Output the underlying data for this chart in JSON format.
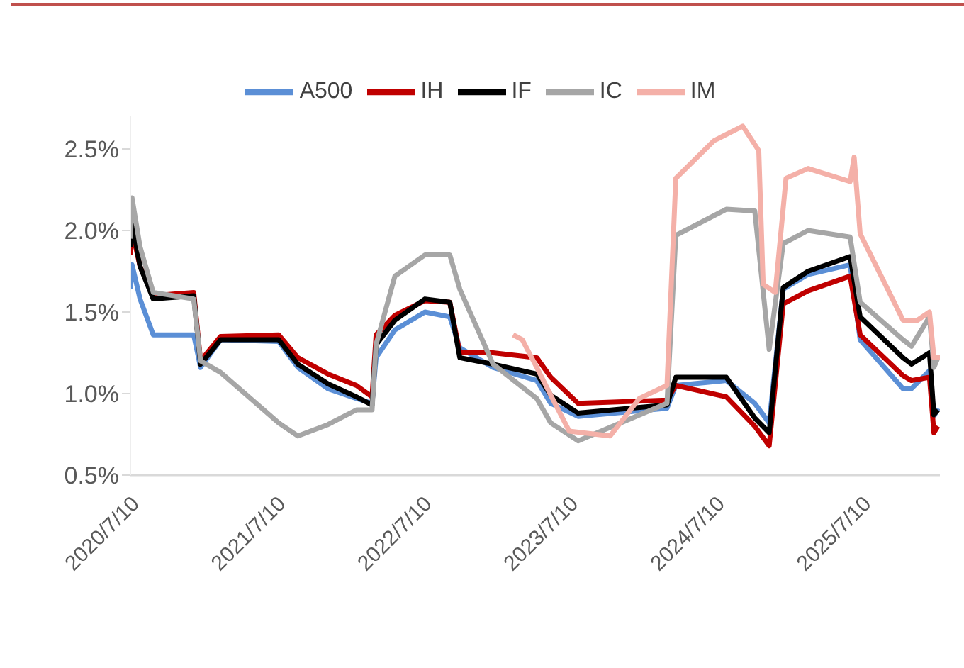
{
  "chart_data": {
    "type": "line",
    "x": [
      "2020-07-10",
      "2020-07-14",
      "2020-08-03",
      "2020-09-05",
      "2020-12-15",
      "2021-01-01",
      "2021-02-20",
      "2021-07-15",
      "2021-09-01",
      "2021-11-15",
      "2022-01-25",
      "2022-03-05",
      "2022-03-15",
      "2022-05-01",
      "2022-07-15",
      "2022-09-15",
      "2022-10-10",
      "2023-01-01",
      "2023-04-20",
      "2023-05-25",
      "2023-08-01",
      "2024-03-10",
      "2024-04-01",
      "2024-08-05",
      "2024-10-15",
      "2024-11-20",
      "2024-12-25",
      "2025-02-25",
      "2025-06-10",
      "2025-07-05",
      "2025-10-20",
      "2025-11-10",
      "2025-12-25",
      "2026-01-05",
      "2026-01-15"
    ],
    "series": [
      {
        "name": "A500",
        "color": "#5b8fd6",
        "values": [
          1.64,
          1.79,
          1.58,
          1.36,
          1.36,
          1.16,
          1.33,
          1.32,
          1.16,
          1.03,
          0.97,
          0.94,
          1.22,
          1.39,
          1.5,
          1.47,
          1.28,
          1.16,
          1.08,
          0.94,
          0.86,
          0.91,
          1.05,
          1.08,
          0.94,
          0.82,
          1.64,
          1.73,
          1.79,
          1.33,
          1.03,
          1.03,
          1.14,
          0.86,
          0.91
        ]
      },
      {
        "name": "IH",
        "color": "#c00000",
        "values": [
          1.85,
          2.0,
          1.78,
          1.6,
          1.62,
          1.2,
          1.35,
          1.36,
          1.22,
          1.12,
          1.05,
          0.98,
          1.36,
          1.48,
          1.57,
          1.56,
          1.25,
          1.25,
          1.22,
          1.1,
          0.94,
          0.96,
          1.05,
          0.98,
          0.8,
          0.68,
          1.55,
          1.63,
          1.72,
          1.36,
          1.11,
          1.08,
          1.1,
          0.76,
          0.8
        ]
      },
      {
        "name": "IF",
        "color": "#000000",
        "values": [
          1.9,
          2.05,
          1.78,
          1.58,
          1.6,
          1.18,
          1.33,
          1.33,
          1.18,
          1.06,
          0.98,
          0.93,
          1.3,
          1.45,
          1.58,
          1.56,
          1.22,
          1.18,
          1.12,
          0.99,
          0.88,
          0.93,
          1.1,
          1.1,
          0.85,
          0.76,
          1.65,
          1.75,
          1.84,
          1.47,
          1.22,
          1.18,
          1.25,
          0.87,
          0.9
        ]
      },
      {
        "name": "IC",
        "color": "#a6a6a6",
        "values": [
          1.95,
          2.2,
          1.9,
          1.62,
          1.58,
          1.2,
          1.13,
          0.82,
          0.74,
          0.81,
          0.9,
          0.9,
          1.3,
          1.72,
          1.85,
          1.85,
          1.64,
          1.18,
          0.97,
          0.82,
          0.71,
          0.94,
          1.97,
          2.13,
          2.12,
          1.27,
          1.92,
          2.0,
          1.96,
          1.56,
          1.33,
          1.29,
          1.47,
          1.16,
          1.22
        ]
      },
      {
        "name": "IM",
        "color": "#f4b0a8",
        "x": [
          "2023-02-20",
          "2023-03-15",
          "2023-04-20",
          "2023-05-25",
          "2023-07-10",
          "2023-10-20",
          "2024-01-01",
          "2024-03-10",
          "2024-04-01",
          "2024-07-05",
          "2024-09-15",
          "2024-10-25",
          "2024-11-05",
          "2024-12-05",
          "2025-01-01",
          "2025-02-25",
          "2025-06-10",
          "2025-06-20",
          "2025-07-05",
          "2025-10-20",
          "2025-11-25",
          "2025-12-25",
          "2026-01-05",
          "2026-01-20"
        ],
        "values": [
          1.36,
          1.33,
          1.16,
          0.99,
          0.77,
          0.74,
          0.97,
          1.05,
          2.32,
          2.55,
          2.64,
          2.49,
          1.67,
          1.62,
          2.32,
          2.38,
          2.3,
          2.45,
          1.98,
          1.45,
          1.45,
          1.5,
          1.22,
          1.22
        ]
      }
    ],
    "xlim": [
      "2020-07-10",
      "2026-01-20"
    ],
    "xticks": [
      {
        "value": "2020-07-10",
        "label": "2020/7/10"
      },
      {
        "value": "2021-07-10",
        "label": "2021/7/10"
      },
      {
        "value": "2022-07-10",
        "label": "2022/7/10"
      },
      {
        "value": "2023-07-10",
        "label": "2023/7/10"
      },
      {
        "value": "2024-07-10",
        "label": "2024/7/10"
      },
      {
        "value": "2025-07-10",
        "label": "2025/7/10"
      }
    ],
    "ylim": [
      0.5,
      2.7
    ],
    "yticks": [
      {
        "value": 0.5,
        "label": "0.5%"
      },
      {
        "value": 1.0,
        "label": "1.0%"
      },
      {
        "value": 1.5,
        "label": "1.5%"
      },
      {
        "value": 2.0,
        "label": "2.0%"
      },
      {
        "value": 2.5,
        "label": "2.5%"
      }
    ],
    "legend": "top",
    "marker": "none",
    "line_style": "solid"
  }
}
